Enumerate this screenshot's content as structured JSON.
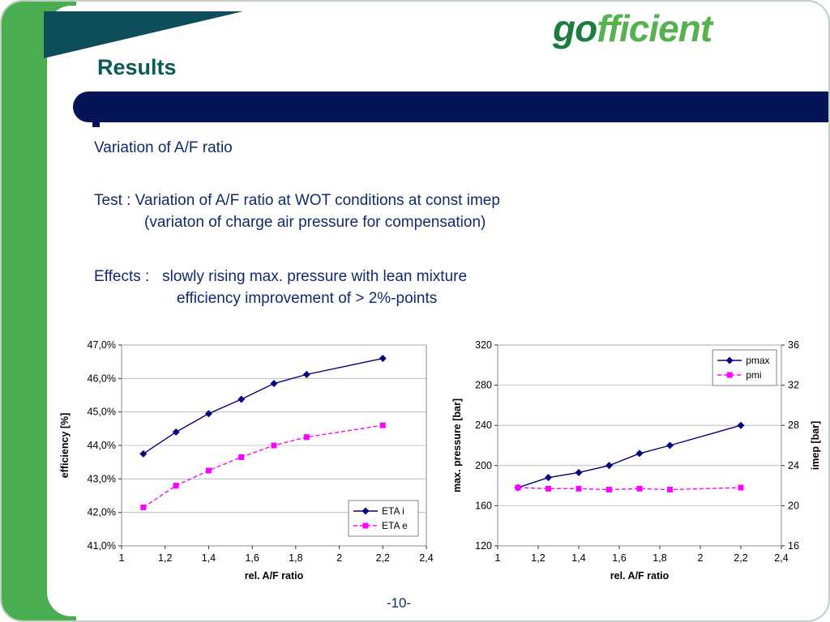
{
  "logo": {
    "part1": "go",
    "part2": "fficient"
  },
  "header": {
    "title": "Results"
  },
  "body": {
    "line1": "Variation of A/F ratio",
    "test_line1": "Test : Variation of A/F ratio at WOT conditions at const imep",
    "test_line2": "(variaton of charge air pressure for compensation)",
    "effects_line1": "Effects :   slowly rising max. pressure with lean mixture",
    "effects_line2": "efficiency improvement of > 2%-points"
  },
  "footer": {
    "page": "-10-"
  },
  "colors": {
    "green_band": "#4aad52",
    "logo_dark_green": "#1c7c3f",
    "logo_light_green": "#55b24e",
    "title_teal": "#0a5a56",
    "bar_navy": "#041457",
    "body_text_navy": "#112a70",
    "series_navy": "#000080",
    "series_magenta": "#ff00ff"
  },
  "chart_data": [
    {
      "type": "line",
      "title": "",
      "xlabel": "rel. A/F ratio",
      "ylabel": "efficiency [%]",
      "xlim": [
        1,
        2.4
      ],
      "ylim": [
        41,
        47
      ],
      "x_ticks": [
        "1",
        "1,2",
        "1,4",
        "1,6",
        "1,8",
        "2",
        "2,2",
        "2,4"
      ],
      "x_tick_values": [
        1,
        1.2,
        1.4,
        1.6,
        1.8,
        2,
        2.2,
        2.4
      ],
      "y_ticks": [
        "41,0%",
        "42,0%",
        "43,0%",
        "44,0%",
        "45,0%",
        "46,0%",
        "47,0%"
      ],
      "y_tick_values": [
        41,
        42,
        43,
        44,
        45,
        46,
        47
      ],
      "grid": "horizontal",
      "legend_position": "bottom-right",
      "series": [
        {
          "name": "ETA i",
          "axis": "left",
          "color": "#000080",
          "marker": "diamond",
          "dash": false,
          "x": [
            1.1,
            1.25,
            1.4,
            1.55,
            1.7,
            1.85,
            2.2
          ],
          "y": [
            43.75,
            44.4,
            44.95,
            45.38,
            45.85,
            46.12,
            46.6
          ]
        },
        {
          "name": "ETA e",
          "axis": "left",
          "color": "#ff00ff",
          "marker": "square",
          "dash": true,
          "x": [
            1.1,
            1.25,
            1.4,
            1.55,
            1.7,
            1.85,
            2.2
          ],
          "y": [
            42.15,
            42.8,
            43.25,
            43.65,
            44.0,
            44.25,
            44.6
          ]
        }
      ]
    },
    {
      "type": "line",
      "title": "",
      "xlabel": "rel. A/F ratio",
      "ylabel": "max. pressure [bar]",
      "y2label": "imep [bar]",
      "xlim": [
        1,
        2.4
      ],
      "ylim": [
        120,
        320
      ],
      "y2lim": [
        16,
        36
      ],
      "x_ticks": [
        "1",
        "1,2",
        "1,4",
        "1,6",
        "1,8",
        "2",
        "2,2",
        "2,4"
      ],
      "x_tick_values": [
        1,
        1.2,
        1.4,
        1.6,
        1.8,
        2,
        2.2,
        2.4
      ],
      "y_ticks": [
        "120",
        "160",
        "200",
        "240",
        "280",
        "320"
      ],
      "y_tick_values": [
        120,
        160,
        200,
        240,
        280,
        320
      ],
      "y2_ticks": [
        "16",
        "20",
        "24",
        "28",
        "32",
        "36"
      ],
      "y2_tick_values": [
        16,
        20,
        24,
        28,
        32,
        36
      ],
      "grid": "horizontal",
      "legend_position": "top-right",
      "series": [
        {
          "name": "pmax",
          "axis": "left",
          "color": "#000080",
          "marker": "diamond",
          "dash": false,
          "x": [
            1.1,
            1.25,
            1.4,
            1.55,
            1.7,
            1.85,
            2.2
          ],
          "y": [
            178,
            188,
            193,
            200,
            212,
            220,
            240
          ]
        },
        {
          "name": "pmi",
          "axis": "right",
          "color": "#ff00ff",
          "marker": "square",
          "dash": true,
          "x": [
            1.1,
            1.25,
            1.4,
            1.55,
            1.7,
            1.85,
            2.2
          ],
          "y": [
            21.8,
            21.7,
            21.7,
            21.6,
            21.7,
            21.6,
            21.8
          ]
        }
      ]
    }
  ]
}
